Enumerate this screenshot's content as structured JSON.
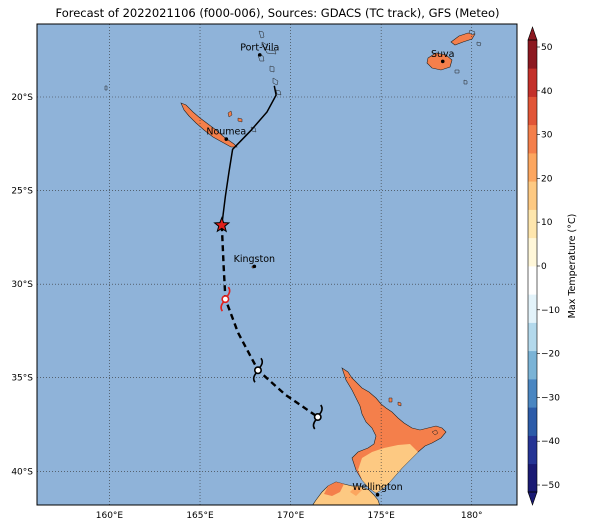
{
  "title": "Forecast of 2022021106 (f000-006), Sources: GDACS (TC track), GFS (Meteo)",
  "map": {
    "lon_range": [
      156,
      182.5
    ],
    "lat_range": [
      -41.8,
      -16.1
    ],
    "grid": "dotted",
    "ocean_color": "#8fb3d9",
    "lon_ticks": [
      {
        "value": 160,
        "label": "160°E"
      },
      {
        "value": 165,
        "label": "165°E"
      },
      {
        "value": 170,
        "label": "170°E"
      },
      {
        "value": 175,
        "label": "175°E"
      },
      {
        "value": 180,
        "label": "180°"
      }
    ],
    "lat_ticks": [
      {
        "value": -20,
        "label": "20°S"
      },
      {
        "value": -25,
        "label": "25°S"
      },
      {
        "value": -30,
        "label": "30°S"
      },
      {
        "value": -35,
        "label": "35°S"
      },
      {
        "value": -40,
        "label": "40°S"
      }
    ]
  },
  "cities": [
    {
      "name": "Port-Vila",
      "lon": 168.3,
      "lat": -17.75
    },
    {
      "name": "Suva",
      "lon": 178.4,
      "lat": -18.1
    },
    {
      "name": "Noumea",
      "lon": 166.45,
      "lat": -22.25
    },
    {
      "name": "Kingston",
      "lon": 168.0,
      "lat": -29.05
    },
    {
      "name": "Wellington",
      "lon": 174.8,
      "lat": -41.25
    }
  ],
  "track": {
    "past": [
      [
        169.1,
        -19.4
      ],
      [
        169.2,
        -19.9
      ],
      [
        168.7,
        -20.8
      ],
      [
        167.8,
        -21.8
      ],
      [
        166.8,
        -22.8
      ],
      [
        166.6,
        -24.0
      ],
      [
        166.4,
        -25.3
      ],
      [
        166.2,
        -26.85
      ]
    ],
    "forecast": [
      [
        166.2,
        -26.85
      ],
      [
        166.3,
        -29.0
      ],
      [
        166.4,
        -30.8
      ],
      [
        167.1,
        -32.6
      ],
      [
        168.2,
        -34.6
      ],
      [
        169.7,
        -35.9
      ],
      [
        171.5,
        -37.1
      ]
    ],
    "current": {
      "lon": 166.2,
      "lat": -26.85
    },
    "symbols": [
      {
        "lon": 166.4,
        "lat": -30.8
      },
      {
        "lon": 168.2,
        "lat": -34.6
      },
      {
        "lon": 171.5,
        "lat": -37.1
      }
    ]
  },
  "colorbar": {
    "label": "Max Temperature (°C)",
    "min": -50,
    "max": 50,
    "ticks": [
      50,
      40,
      30,
      20,
      10,
      0,
      -10,
      -20,
      -30,
      -40,
      -50
    ],
    "colors": [
      "#1a1a73",
      "#253494",
      "#2c5ba8",
      "#4a86c1",
      "#7ab3d6",
      "#b3d9ec",
      "#e3f3fa",
      "#ffffff",
      "#fff7d9",
      "#fee6ad",
      "#fdc982",
      "#fca65f",
      "#f47f4b",
      "#e15537",
      "#c3302a",
      "#8c1820"
    ]
  }
}
